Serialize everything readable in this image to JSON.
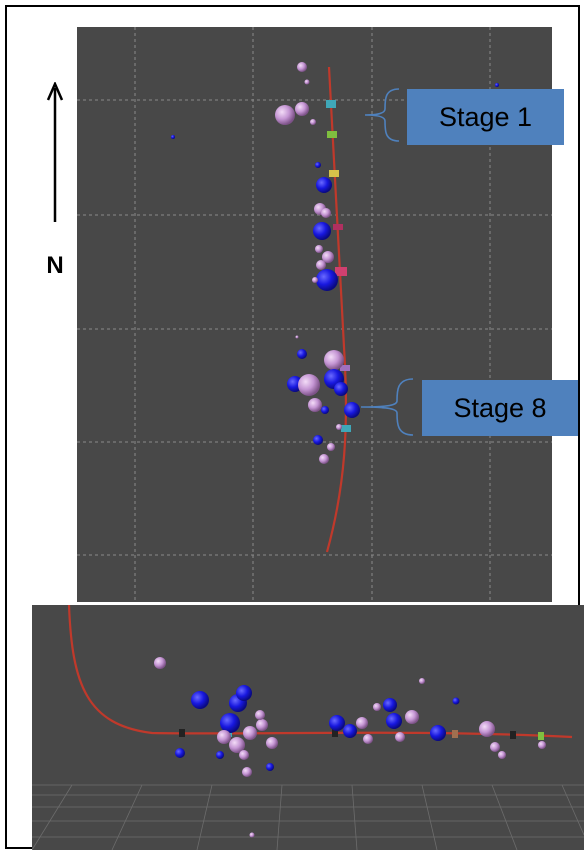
{
  "annotations": {
    "north_label": "N",
    "stage_1_label": "Stage 1",
    "stage_8_label": "Stage 8"
  },
  "colors": {
    "panel_background": "#484848",
    "grid_line": "#8a8a8a",
    "wellbore": "#c0392b",
    "event_blue": "#1a1ae6",
    "event_pink": "#c79ad6",
    "callout_fill": "#4f81bd",
    "frame": "#000000"
  },
  "legend": {
    "event_types": [
      "blue-sphere",
      "pink-sphere"
    ]
  }
}
